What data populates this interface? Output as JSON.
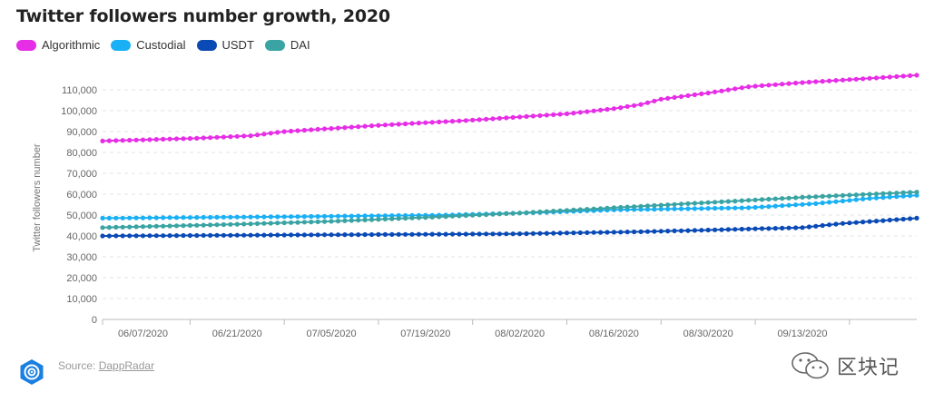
{
  "title": "Twitter followers number growth, 2020",
  "source": {
    "label": "Source:",
    "name": "DappRadar"
  },
  "watermark": "区块记",
  "chart_data": {
    "type": "line",
    "title": "Twitter followers number growth, 2020",
    "xlabel": "",
    "ylabel": "Twitter followers number",
    "ylim": [
      0,
      115000
    ],
    "yticks": [
      0,
      10000,
      20000,
      30000,
      40000,
      50000,
      60000,
      70000,
      80000,
      90000,
      100000,
      110000
    ],
    "ytick_labels": [
      "0",
      "10,000",
      "20,000",
      "30,000",
      "40,000",
      "50,000",
      "60,000",
      "70,000",
      "80,000",
      "90,000",
      "100,000",
      "110,000"
    ],
    "xlim": [
      "2020-06-01",
      "2020-09-30"
    ],
    "xtick_labels": [
      "06/07/2020",
      "06/21/2020",
      "07/05/2020",
      "07/19/2020",
      "08/02/2020",
      "08/16/2020",
      "08/30/2020",
      "09/13/2020"
    ],
    "xticks": [
      "2020-06-07",
      "2020-06-21",
      "2020-07-05",
      "2020-07-19",
      "2020-08-02",
      "2020-08-16",
      "2020-08-30",
      "2020-09-13"
    ],
    "grid": true,
    "legend_position": "top-left",
    "series": [
      {
        "name": "Algorithmic",
        "color": "#e62ee6",
        "points": [
          [
            "2020-06-01",
            85500
          ],
          [
            "2020-06-15",
            86800
          ],
          [
            "2020-06-23",
            88000
          ],
          [
            "2020-06-28",
            90000
          ],
          [
            "2020-07-12",
            93000
          ],
          [
            "2020-07-26",
            95500
          ],
          [
            "2020-08-09",
            98500
          ],
          [
            "2020-08-16",
            101000
          ],
          [
            "2020-08-20",
            103000
          ],
          [
            "2020-08-23",
            105500
          ],
          [
            "2020-08-30",
            108500
          ],
          [
            "2020-09-05",
            111500
          ],
          [
            "2020-09-13",
            113500
          ],
          [
            "2020-09-23",
            115500
          ],
          [
            "2020-09-30",
            117000
          ]
        ]
      },
      {
        "name": "Custodial",
        "color": "#1ab0f5",
        "points": [
          [
            "2020-06-01",
            48500
          ],
          [
            "2020-07-01",
            49300
          ],
          [
            "2020-07-22",
            50000
          ],
          [
            "2020-08-05",
            51200
          ],
          [
            "2020-08-16",
            52500
          ],
          [
            "2020-09-05",
            53500
          ],
          [
            "2020-09-15",
            55500
          ],
          [
            "2020-09-23",
            58000
          ],
          [
            "2020-09-30",
            59500
          ]
        ]
      },
      {
        "name": "USDT",
        "color": "#0a4ab5",
        "points": [
          [
            "2020-06-01",
            40000
          ],
          [
            "2020-07-01",
            40500
          ],
          [
            "2020-08-01",
            41000
          ],
          [
            "2020-08-20",
            42000
          ],
          [
            "2020-09-13",
            44000
          ],
          [
            "2020-09-19",
            46000
          ],
          [
            "2020-09-30",
            48500
          ]
        ]
      },
      {
        "name": "DAI",
        "color": "#3aa3a3",
        "points": [
          [
            "2020-06-01",
            44000
          ],
          [
            "2020-06-20",
            45500
          ],
          [
            "2020-07-05",
            47000
          ],
          [
            "2020-07-20",
            49000
          ],
          [
            "2020-08-02",
            51000
          ],
          [
            "2020-08-16",
            53500
          ],
          [
            "2020-08-30",
            56000
          ],
          [
            "2020-09-13",
            58500
          ],
          [
            "2020-09-23",
            60000
          ],
          [
            "2020-09-30",
            61000
          ]
        ]
      }
    ]
  }
}
